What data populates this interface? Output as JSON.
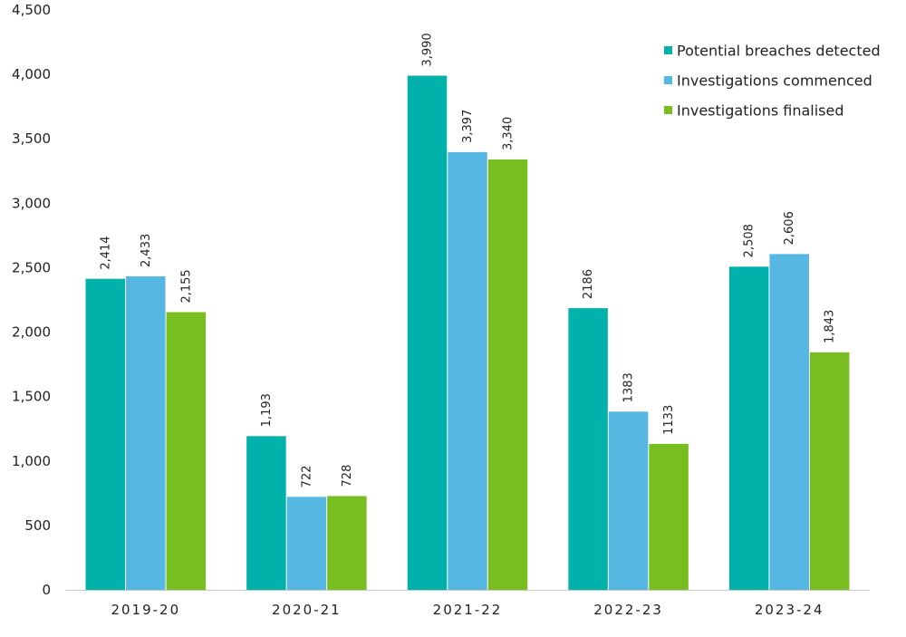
{
  "chart_data": {
    "type": "bar",
    "categories": [
      "2019-20",
      "2020-21",
      "2021-22",
      "2022-23",
      "2023-24"
    ],
    "series": [
      {
        "name": "Potential breaches detected",
        "color": "#00b2a9",
        "values": [
          2414,
          1193,
          3990,
          2186,
          2508
        ],
        "labels": [
          "2,414",
          "1,193",
          "3,990",
          "2186",
          "2,508"
        ]
      },
      {
        "name": "Investigations commenced",
        "color": "#55b7e2",
        "values": [
          2433,
          722,
          3397,
          1383,
          2606
        ],
        "labels": [
          "2,433",
          "722",
          "3,397",
          "1383",
          "2,606"
        ]
      },
      {
        "name": "Investigations finalised",
        "color": "#78be20",
        "values": [
          2155,
          728,
          3340,
          1133,
          1843
        ],
        "labels": [
          "2,155",
          "728",
          "3,340",
          "1133",
          "1,843"
        ]
      }
    ],
    "yticks": [
      "0",
      "500",
      "1,000",
      "1,500",
      "2,000",
      "2,500",
      "3,000",
      "3,500",
      "4,000",
      "4,500"
    ],
    "ylim": [
      0,
      4500
    ],
    "legend_position": "top-right",
    "grid": false,
    "title": "",
    "xlabel": "",
    "ylabel": ""
  }
}
